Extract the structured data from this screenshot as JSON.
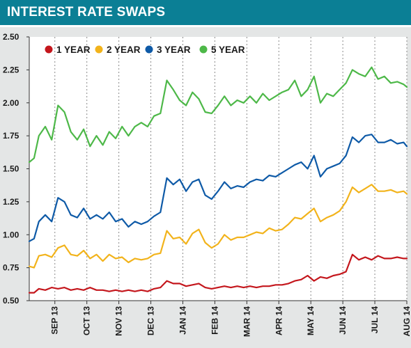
{
  "header": {
    "title": "INTEREST RATE SWAPS",
    "background_color": "#0b7f95"
  },
  "chart_data": {
    "type": "line",
    "title": "INTEREST RATE SWAPS",
    "xlabel": "",
    "ylabel": "",
    "ylim": [
      0.5,
      2.5
    ],
    "y_ticks": [
      "0.50",
      "0.75",
      "1.00",
      "1.25",
      "1.50",
      "1.75",
      "2.00",
      "2.25",
      "2.50"
    ],
    "x_tick_labels": [
      "SEP 13",
      "OCT 13",
      "NOV 13",
      "DEC 13",
      "JAN 14",
      "FEB 14",
      "MAR 14",
      "APR 14",
      "MAY 14",
      "JUN 14",
      "JUL 14",
      "AUG 14"
    ],
    "x_tick_positions": [
      0.5,
      1.5,
      2.5,
      3.5,
      4.5,
      5.5,
      6.5,
      7.5,
      8.5,
      9.5,
      10.5,
      11.5
    ],
    "xlim": [
      -0.3,
      11.5
    ],
    "grid": "vertical dashed",
    "legend_position": "top-left",
    "series": [
      {
        "name": "1 YEAR",
        "color": "#c4161c",
        "x": [
          -0.3,
          -0.15,
          0,
          0.2,
          0.4,
          0.6,
          0.8,
          1.0,
          1.2,
          1.4,
          1.6,
          1.8,
          2.0,
          2.2,
          2.4,
          2.6,
          2.8,
          3.0,
          3.2,
          3.4,
          3.6,
          3.8,
          4.0,
          4.2,
          4.4,
          4.6,
          4.8,
          5.0,
          5.2,
          5.4,
          5.6,
          5.8,
          6.0,
          6.2,
          6.4,
          6.6,
          6.8,
          7.0,
          7.2,
          7.4,
          7.6,
          7.8,
          8.0,
          8.2,
          8.4,
          8.6,
          8.8,
          9.0,
          9.2,
          9.4,
          9.6,
          9.8,
          10.0,
          10.2,
          10.4,
          10.6,
          10.8,
          11.0,
          11.2,
          11.4,
          11.5
        ],
        "values": [
          0.56,
          0.56,
          0.59,
          0.58,
          0.6,
          0.59,
          0.6,
          0.58,
          0.59,
          0.58,
          0.6,
          0.58,
          0.58,
          0.57,
          0.58,
          0.57,
          0.58,
          0.57,
          0.58,
          0.57,
          0.59,
          0.6,
          0.65,
          0.63,
          0.63,
          0.61,
          0.62,
          0.63,
          0.6,
          0.59,
          0.6,
          0.61,
          0.6,
          0.61,
          0.6,
          0.61,
          0.6,
          0.61,
          0.61,
          0.62,
          0.62,
          0.63,
          0.65,
          0.66,
          0.69,
          0.65,
          0.68,
          0.67,
          0.69,
          0.7,
          0.72,
          0.85,
          0.81,
          0.83,
          0.81,
          0.84,
          0.82,
          0.82,
          0.83,
          0.82,
          0.82
        ]
      },
      {
        "name": "2 YEAR",
        "color": "#f2b31b",
        "x": [
          -0.3,
          -0.15,
          0,
          0.2,
          0.4,
          0.6,
          0.8,
          1.0,
          1.2,
          1.4,
          1.6,
          1.8,
          2.0,
          2.2,
          2.4,
          2.6,
          2.8,
          3.0,
          3.2,
          3.4,
          3.6,
          3.8,
          4.0,
          4.2,
          4.4,
          4.6,
          4.8,
          5.0,
          5.2,
          5.4,
          5.6,
          5.8,
          6.0,
          6.2,
          6.4,
          6.6,
          6.8,
          7.0,
          7.2,
          7.4,
          7.6,
          7.8,
          8.0,
          8.2,
          8.4,
          8.6,
          8.8,
          9.0,
          9.2,
          9.4,
          9.6,
          9.8,
          10.0,
          10.2,
          10.4,
          10.6,
          10.8,
          11.0,
          11.2,
          11.4,
          11.5
        ],
        "values": [
          0.76,
          0.75,
          0.84,
          0.85,
          0.83,
          0.9,
          0.92,
          0.85,
          0.84,
          0.88,
          0.82,
          0.85,
          0.8,
          0.85,
          0.82,
          0.83,
          0.79,
          0.82,
          0.81,
          0.82,
          0.85,
          0.86,
          1.03,
          0.97,
          0.98,
          0.93,
          1.01,
          1.04,
          0.94,
          0.9,
          0.93,
          1.0,
          0.96,
          0.98,
          0.98,
          1.0,
          1.02,
          1.01,
          1.05,
          1.03,
          1.04,
          1.08,
          1.13,
          1.12,
          1.16,
          1.2,
          1.1,
          1.13,
          1.15,
          1.18,
          1.25,
          1.36,
          1.32,
          1.35,
          1.38,
          1.33,
          1.33,
          1.34,
          1.32,
          1.33,
          1.31
        ]
      },
      {
        "name": "3 YEAR",
        "color": "#0e5aa7",
        "x": [
          -0.3,
          -0.15,
          0,
          0.2,
          0.4,
          0.6,
          0.8,
          1.0,
          1.2,
          1.4,
          1.6,
          1.8,
          2.0,
          2.2,
          2.4,
          2.6,
          2.8,
          3.0,
          3.2,
          3.4,
          3.6,
          3.8,
          4.0,
          4.2,
          4.4,
          4.6,
          4.8,
          5.0,
          5.2,
          5.4,
          5.6,
          5.8,
          6.0,
          6.2,
          6.4,
          6.6,
          6.8,
          7.0,
          7.2,
          7.4,
          7.6,
          7.8,
          8.0,
          8.2,
          8.4,
          8.6,
          8.8,
          9.0,
          9.2,
          9.4,
          9.6,
          9.8,
          10.0,
          10.2,
          10.4,
          10.6,
          10.8,
          11.0,
          11.2,
          11.4,
          11.5
        ],
        "values": [
          0.95,
          0.97,
          1.1,
          1.15,
          1.1,
          1.28,
          1.25,
          1.15,
          1.13,
          1.2,
          1.12,
          1.15,
          1.12,
          1.17,
          1.1,
          1.12,
          1.06,
          1.1,
          1.08,
          1.1,
          1.14,
          1.17,
          1.43,
          1.38,
          1.42,
          1.33,
          1.4,
          1.42,
          1.3,
          1.27,
          1.33,
          1.4,
          1.35,
          1.37,
          1.36,
          1.4,
          1.42,
          1.41,
          1.45,
          1.44,
          1.47,
          1.5,
          1.53,
          1.55,
          1.5,
          1.6,
          1.44,
          1.5,
          1.52,
          1.54,
          1.6,
          1.74,
          1.7,
          1.75,
          1.76,
          1.7,
          1.7,
          1.72,
          1.69,
          1.7,
          1.67
        ]
      },
      {
        "name": "5 YEAR",
        "color": "#4db848",
        "x": [
          -0.3,
          -0.15,
          0,
          0.2,
          0.4,
          0.6,
          0.8,
          1.0,
          1.2,
          1.4,
          1.6,
          1.8,
          2.0,
          2.2,
          2.4,
          2.6,
          2.8,
          3.0,
          3.2,
          3.4,
          3.6,
          3.8,
          4.0,
          4.2,
          4.4,
          4.6,
          4.8,
          5.0,
          5.2,
          5.4,
          5.6,
          5.8,
          6.0,
          6.2,
          6.4,
          6.6,
          6.8,
          7.0,
          7.2,
          7.4,
          7.6,
          7.8,
          8.0,
          8.2,
          8.4,
          8.6,
          8.8,
          9.0,
          9.2,
          9.4,
          9.6,
          9.8,
          10.0,
          10.2,
          10.4,
          10.6,
          10.8,
          11.0,
          11.2,
          11.4,
          11.5
        ],
        "values": [
          1.55,
          1.58,
          1.75,
          1.82,
          1.72,
          1.98,
          1.93,
          1.78,
          1.72,
          1.8,
          1.67,
          1.75,
          1.68,
          1.78,
          1.73,
          1.82,
          1.75,
          1.82,
          1.85,
          1.82,
          1.9,
          1.92,
          2.17,
          2.1,
          2.02,
          1.98,
          2.08,
          2.03,
          1.93,
          1.92,
          1.98,
          2.05,
          1.98,
          2.02,
          2.0,
          2.05,
          2.0,
          2.07,
          2.02,
          2.05,
          2.08,
          2.1,
          2.17,
          2.05,
          2.1,
          2.2,
          2.0,
          2.07,
          2.05,
          2.1,
          2.15,
          2.25,
          2.22,
          2.2,
          2.27,
          2.18,
          2.2,
          2.15,
          2.16,
          2.14,
          2.12
        ]
      }
    ]
  }
}
